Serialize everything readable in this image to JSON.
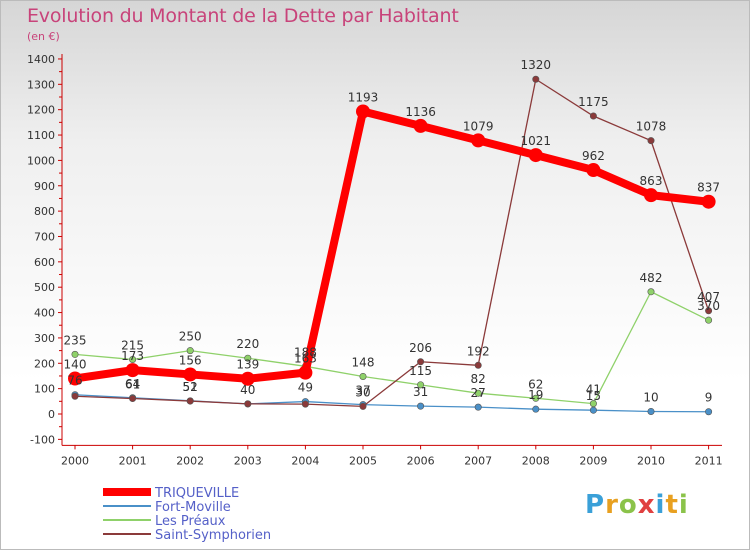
{
  "title": "Evolution du Montant de la Dette par Habitant",
  "unit": "(en €)",
  "logo": {
    "text": "Proxiti",
    "colors": [
      "#3aa0d8",
      "#e8a020",
      "#8bc34a",
      "#e04040"
    ]
  },
  "chart_data": {
    "type": "line",
    "x": [
      "2000",
      "2001",
      "2002",
      "2003",
      "2004",
      "2005",
      "2006",
      "2007",
      "2008",
      "2009",
      "2010",
      "2011"
    ],
    "y_ticks": [
      "1400",
      "1300",
      "1200",
      "1100",
      "1000",
      "900",
      "800",
      "700",
      "600",
      "500",
      "400",
      "300",
      "200",
      "100",
      "0",
      "-100"
    ],
    "ylim": [
      -100,
      1400
    ],
    "grid": false,
    "legend_position": "bottom-left",
    "series": [
      {
        "name": "TRIQUEVILLE",
        "color": "#ff0000",
        "values": [
          140,
          173,
          156,
          139,
          163,
          1193,
          1136,
          1079,
          1021,
          962,
          863,
          837
        ],
        "labels": [
          "140",
          "173",
          "156",
          "139",
          "163",
          "1193",
          "1136",
          "1079",
          "1021",
          "962",
          "863",
          "837"
        ]
      },
      {
        "name": "Fort-Moville",
        "color": "#4a90c8",
        "values": [
          76,
          64,
          52,
          40,
          49,
          37,
          31,
          27,
          19,
          15,
          10,
          9
        ],
        "labels": [
          "76",
          "64",
          "52",
          "40",
          "49",
          "37",
          "31",
          "27",
          "19",
          "15",
          "10",
          "9"
        ]
      },
      {
        "name": "Les Préaux",
        "color": "#8fd16a",
        "values": [
          235,
          215,
          250,
          220,
          188,
          148,
          115,
          82,
          62,
          41,
          482,
          370
        ],
        "labels": [
          "235",
          "215",
          "250",
          "220",
          "188",
          "148",
          "115",
          "82",
          "62",
          "41",
          "482",
          "370"
        ]
      },
      {
        "name": "Saint-Symphorien",
        "color": "#8b3a3a",
        "values": [
          70,
          61,
          51,
          40,
          39,
          30,
          206,
          192,
          1320,
          1175,
          1078,
          407
        ],
        "labels": [
          "",
          "61",
          "51",
          "",
          "",
          "30",
          "206",
          "192",
          "1320",
          "1175",
          "1078",
          "407"
        ]
      }
    ]
  }
}
